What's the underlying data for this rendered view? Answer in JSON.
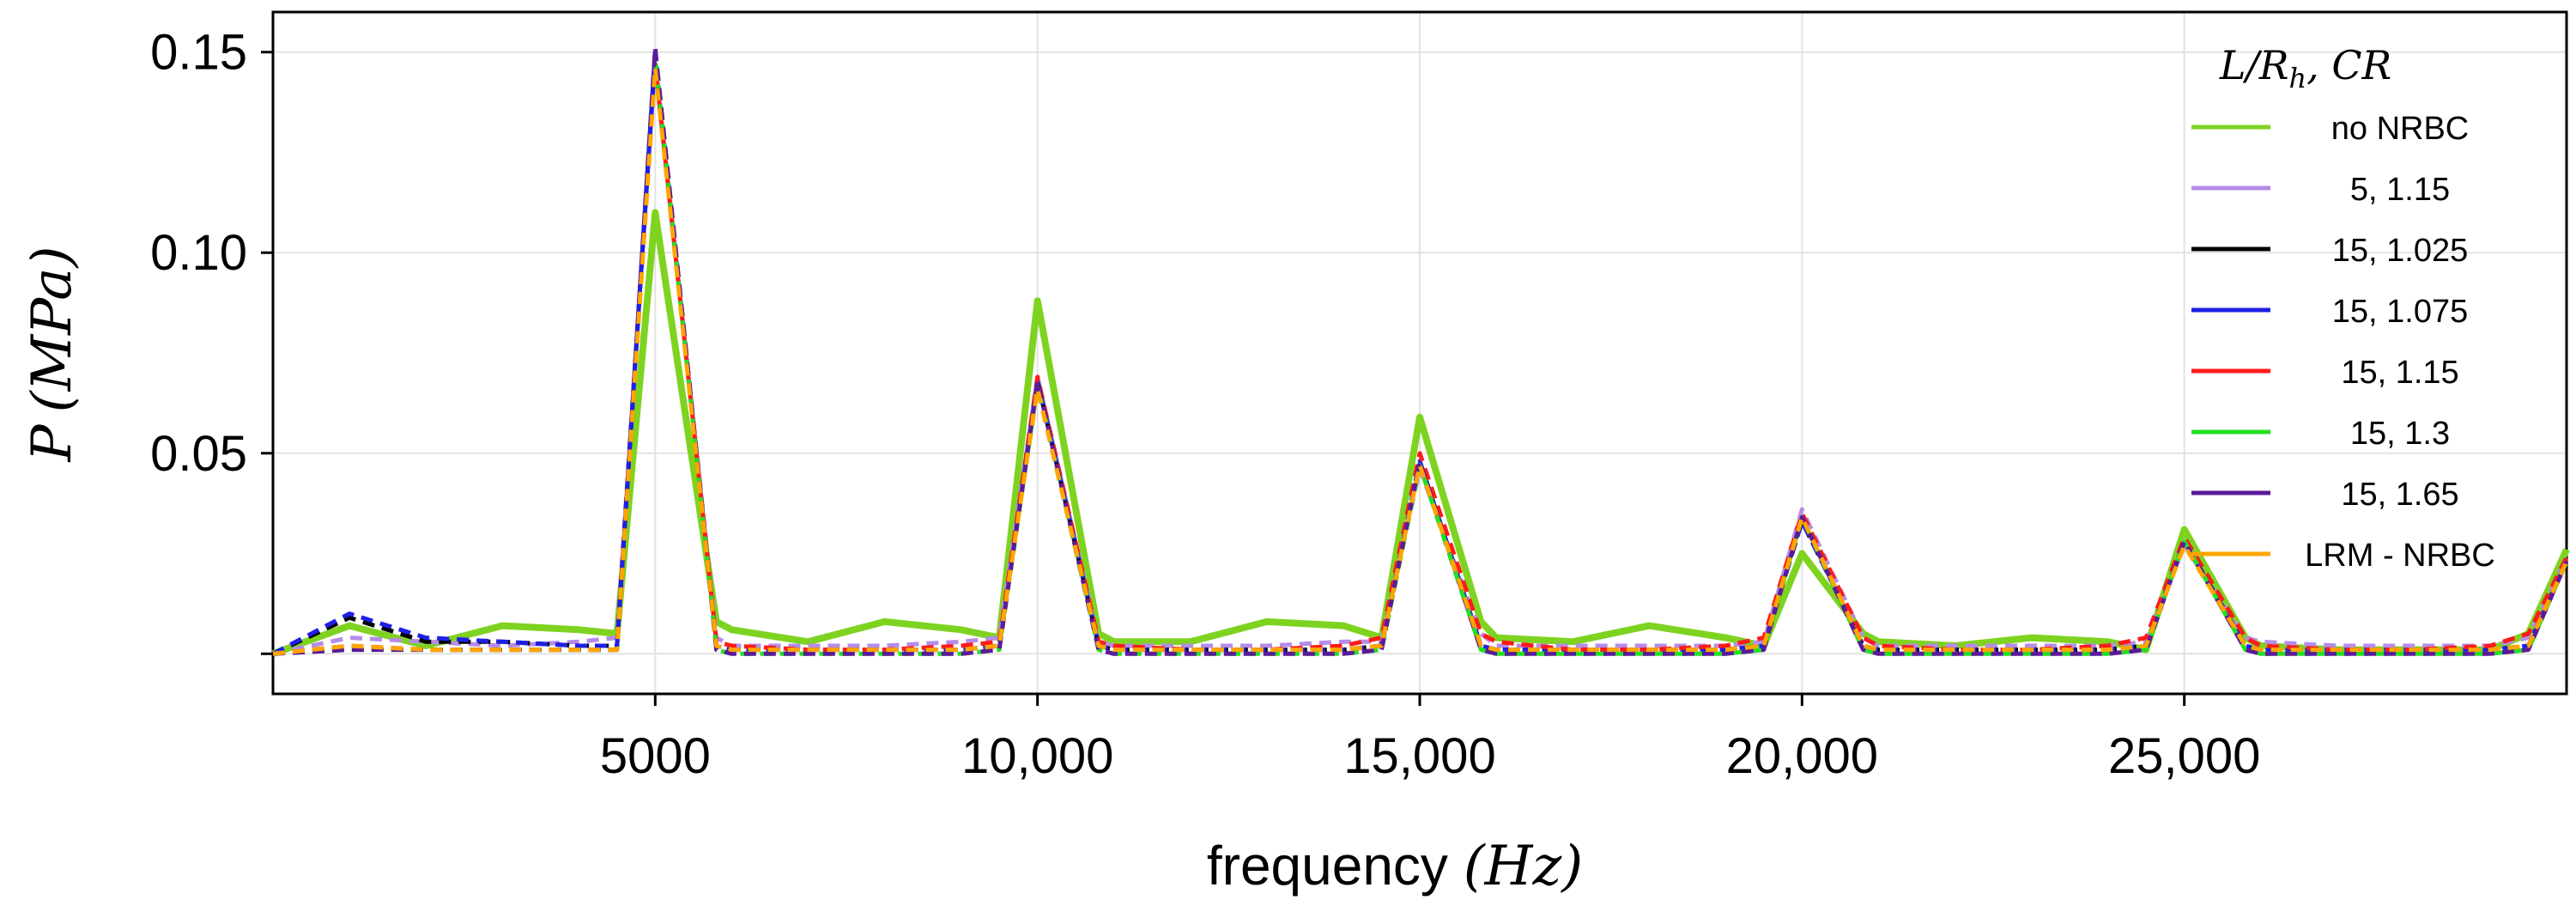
{
  "chart_data": {
    "type": "line",
    "title": "",
    "xlabel": {
      "prefix": "frequency ",
      "unit": "(Hz)"
    },
    "ylabel": {
      "symbol": "P",
      "unit": "(MPa)"
    },
    "xlim": [
      0,
      30000
    ],
    "ylim": [
      -0.01,
      0.16
    ],
    "grid": true,
    "x_ticks": [
      {
        "value": 5000,
        "label": "5000"
      },
      {
        "value": 10000,
        "label": "10,000"
      },
      {
        "value": 15000,
        "label": "15,000"
      },
      {
        "value": 20000,
        "label": "20,000"
      },
      {
        "value": 25000,
        "label": "25,000"
      }
    ],
    "y_ticks": [
      {
        "value": 0.05,
        "label": "0.05"
      },
      {
        "value": 0.1,
        "label": "0.10"
      },
      {
        "value": 0.15,
        "label": "0.15"
      }
    ],
    "legend": {
      "title": "L/R_h, CR",
      "title_main": "L/R",
      "title_sub": "h",
      "title_tail": ", CR",
      "placement": "right"
    },
    "x": [
      0,
      1000,
      2000,
      3000,
      4000,
      4500,
      5000,
      5800,
      6000,
      7000,
      8000,
      9000,
      9500,
      10000,
      10800,
      11000,
      12000,
      13000,
      14000,
      14500,
      15000,
      15800,
      16000,
      17000,
      18000,
      19000,
      19500,
      20000,
      20800,
      21000,
      22000,
      23000,
      24000,
      24500,
      25000,
      25800,
      26000,
      27000,
      28000,
      29000,
      29500,
      30000
    ],
    "series": [
      {
        "name": "no NRBC",
        "color": "#7ed321",
        "style": "solid",
        "width": 8,
        "values": [
          0.0,
          0.007,
          0.002,
          0.007,
          0.006,
          0.005,
          0.11,
          0.008,
          0.006,
          0.003,
          0.008,
          0.006,
          0.004,
          0.088,
          0.005,
          0.003,
          0.003,
          0.008,
          0.007,
          0.004,
          0.059,
          0.008,
          0.004,
          0.003,
          0.007,
          0.004,
          0.002,
          0.025,
          0.005,
          0.003,
          0.002,
          0.004,
          0.003,
          0.001,
          0.031,
          0.004,
          0.002,
          0.001,
          0.001,
          0.001,
          0.005,
          0.026
        ]
      },
      {
        "name": "5, 1.15",
        "color": "#b58ce8",
        "style": "dashed",
        "width": 5,
        "values": [
          0.0,
          0.004,
          0.003,
          0.002,
          0.003,
          0.004,
          0.148,
          0.004,
          0.002,
          0.002,
          0.002,
          0.003,
          0.004,
          0.069,
          0.003,
          0.002,
          0.002,
          0.002,
          0.003,
          0.003,
          0.046,
          0.005,
          0.002,
          0.002,
          0.002,
          0.002,
          0.003,
          0.036,
          0.004,
          0.002,
          0.002,
          0.002,
          0.002,
          0.003,
          0.027,
          0.004,
          0.003,
          0.002,
          0.002,
          0.002,
          0.004,
          0.024
        ]
      },
      {
        "name": "15, 1.025",
        "color": "#000000",
        "style": "dashed",
        "width": 5,
        "values": [
          0.0,
          0.009,
          0.003,
          0.003,
          0.002,
          0.002,
          0.15,
          0.002,
          0.001,
          0.001,
          0.001,
          0.001,
          0.002,
          0.068,
          0.002,
          0.001,
          0.001,
          0.001,
          0.001,
          0.002,
          0.048,
          0.002,
          0.001,
          0.001,
          0.001,
          0.001,
          0.002,
          0.033,
          0.002,
          0.001,
          0.001,
          0.001,
          0.001,
          0.002,
          0.028,
          0.002,
          0.001,
          0.001,
          0.001,
          0.001,
          0.002,
          0.023
        ]
      },
      {
        "name": "15, 1.075",
        "color": "#1f1fe6",
        "style": "dashed",
        "width": 5,
        "values": [
          0.0,
          0.01,
          0.004,
          0.003,
          0.002,
          0.002,
          0.15,
          0.002,
          0.001,
          0.001,
          0.001,
          0.001,
          0.002,
          0.068,
          0.002,
          0.001,
          0.001,
          0.001,
          0.001,
          0.002,
          0.048,
          0.002,
          0.001,
          0.001,
          0.001,
          0.001,
          0.002,
          0.033,
          0.002,
          0.001,
          0.001,
          0.001,
          0.001,
          0.002,
          0.028,
          0.002,
          0.001,
          0.001,
          0.001,
          0.001,
          0.002,
          0.023
        ]
      },
      {
        "name": "15, 1.15",
        "color": "#ff1a1a",
        "style": "dashed",
        "width": 5,
        "values": [
          0.0,
          0.002,
          0.001,
          0.001,
          0.001,
          0.001,
          0.147,
          0.003,
          0.002,
          0.001,
          0.001,
          0.002,
          0.003,
          0.069,
          0.003,
          0.002,
          0.001,
          0.001,
          0.002,
          0.004,
          0.05,
          0.005,
          0.003,
          0.001,
          0.001,
          0.002,
          0.004,
          0.035,
          0.004,
          0.002,
          0.001,
          0.001,
          0.002,
          0.004,
          0.029,
          0.004,
          0.002,
          0.001,
          0.001,
          0.002,
          0.005,
          0.024
        ]
      },
      {
        "name": "15, 1.3",
        "color": "#22e022",
        "style": "dashed",
        "width": 5,
        "values": [
          0.0,
          0.001,
          0.001,
          0.001,
          0.001,
          0.001,
          0.149,
          0.001,
          0.0,
          0.0,
          0.0,
          0.0,
          0.001,
          0.067,
          0.001,
          0.0,
          0.0,
          0.0,
          0.0,
          0.001,
          0.047,
          0.001,
          0.0,
          0.0,
          0.0,
          0.0,
          0.001,
          0.034,
          0.001,
          0.0,
          0.0,
          0.0,
          0.0,
          0.001,
          0.028,
          0.001,
          0.0,
          0.0,
          0.0,
          0.0,
          0.001,
          0.023
        ]
      },
      {
        "name": "15, 1.65",
        "color": "#5b1a99",
        "style": "dashed",
        "width": 5,
        "values": [
          0.0,
          0.001,
          0.001,
          0.001,
          0.001,
          0.001,
          0.151,
          0.001,
          0.0,
          0.0,
          0.0,
          0.0,
          0.001,
          0.068,
          0.001,
          0.0,
          0.0,
          0.0,
          0.0,
          0.001,
          0.048,
          0.001,
          0.0,
          0.0,
          0.0,
          0.0,
          0.001,
          0.034,
          0.001,
          0.0,
          0.0,
          0.0,
          0.0,
          0.001,
          0.028,
          0.001,
          0.0,
          0.0,
          0.0,
          0.0,
          0.001,
          0.023
        ]
      },
      {
        "name": "LRM - NRBC",
        "color": "#ffa500",
        "style": "dashed",
        "width": 5,
        "values": [
          0.0,
          0.002,
          0.001,
          0.001,
          0.001,
          0.001,
          0.146,
          0.002,
          0.001,
          0.001,
          0.001,
          0.001,
          0.002,
          0.066,
          0.002,
          0.001,
          0.001,
          0.001,
          0.001,
          0.002,
          0.047,
          0.002,
          0.001,
          0.001,
          0.001,
          0.001,
          0.002,
          0.034,
          0.002,
          0.001,
          0.001,
          0.001,
          0.001,
          0.002,
          0.027,
          0.002,
          0.001,
          0.001,
          0.001,
          0.001,
          0.002,
          0.023
        ]
      }
    ]
  }
}
